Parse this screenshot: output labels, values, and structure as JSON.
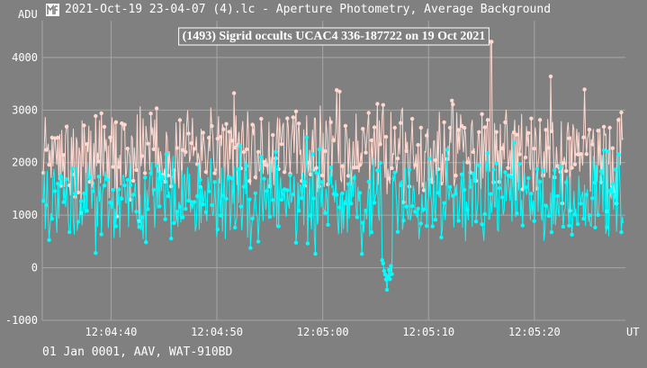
{
  "window": {
    "title": "2021-Oct-19 23-04-07 (4).lc - Aperture Photometry, Average Background",
    "icon": "light-curve-app-icon"
  },
  "footer": {
    "text": "01 Jan 0001, AAV, WAT-910BD"
  },
  "colors": {
    "background": "#808080",
    "grid": "#a6a6a6",
    "target_series": "#00ffff",
    "background_series": "#ffd8d0",
    "title_border": "#ffffff"
  },
  "chart_data": {
    "type": "line",
    "title": "(1493) Sigrid occults UCAC4 336-187722 on 19 Oct 2021",
    "ylabel": "ADU",
    "xlabel": "UT",
    "ylim": [
      -1000,
      4700
    ],
    "xlim": [
      "12:04:33.5",
      "12:05:28.6"
    ],
    "x_ticks": [
      "12:04:40",
      "12:04:50",
      "12:05:00",
      "12:05:10",
      "12:05:20"
    ],
    "y_ticks": [
      -1000,
      0,
      1000,
      2000,
      3000,
      4000
    ],
    "grid": true,
    "series": [
      {
        "role": "background",
        "x_start": "12:04:33.6",
        "x_end": "12:05:28.4",
        "samples": 600,
        "typical_range": [
          1300,
          3100
        ],
        "peak": 4300,
        "peak_at": "12:05:15.9"
      },
      {
        "role": "target",
        "x_start": "12:04:33.6",
        "x_end": "12:05:28.4",
        "samples": 600,
        "typical_range": [
          500,
          2100
        ],
        "event_start": "12:05:05.6",
        "event_end": "12:05:06.6",
        "event_min": -850
      }
    ]
  }
}
